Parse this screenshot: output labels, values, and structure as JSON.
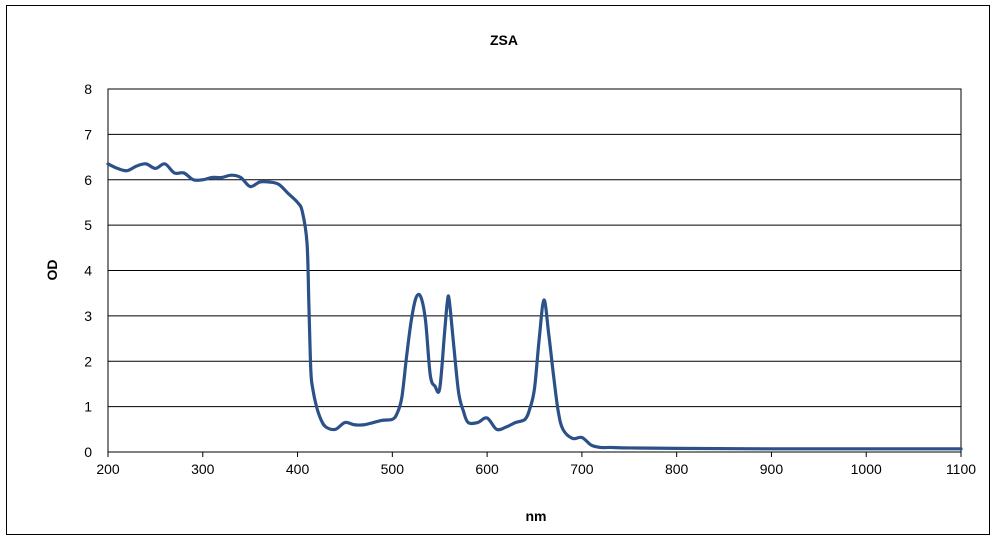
{
  "chart_data": {
    "type": "line",
    "title": "ZSA",
    "xlabel": "nm",
    "ylabel": "OD",
    "xlim": [
      200,
      1100
    ],
    "ylim": [
      0,
      8
    ],
    "xticks": [
      200,
      300,
      400,
      500,
      600,
      700,
      800,
      900,
      1000,
      1100
    ],
    "yticks": [
      0,
      1,
      2,
      3,
      4,
      5,
      6,
      7,
      8
    ],
    "grid": "horizontal",
    "colors": {
      "line": "#2b5188",
      "grid": "#000000"
    },
    "series": [
      {
        "x": [
          200,
          210,
          220,
          230,
          240,
          250,
          260,
          270,
          280,
          290,
          300,
          310,
          320,
          330,
          340,
          350,
          360,
          370,
          380,
          390,
          400,
          405,
          410,
          412,
          414,
          416,
          420,
          425,
          430,
          440,
          450,
          460,
          470,
          480,
          490,
          500,
          505,
          510,
          515,
          520,
          525,
          530,
          535,
          540,
          545,
          550,
          555,
          558,
          560,
          565,
          570,
          575,
          580,
          590,
          600,
          610,
          620,
          630,
          640,
          645,
          650,
          655,
          660,
          665,
          670,
          675,
          680,
          690,
          700,
          710,
          720,
          730,
          750,
          800,
          900,
          1000,
          1100
        ],
        "y": [
          6.35,
          6.25,
          6.2,
          6.3,
          6.35,
          6.25,
          6.35,
          6.15,
          6.15,
          6.0,
          6.0,
          6.05,
          6.05,
          6.1,
          6.05,
          5.85,
          5.95,
          5.95,
          5.9,
          5.7,
          5.5,
          5.3,
          4.6,
          3.2,
          1.8,
          1.4,
          1.0,
          0.7,
          0.55,
          0.5,
          0.65,
          0.6,
          0.6,
          0.65,
          0.7,
          0.72,
          0.85,
          1.2,
          2.1,
          2.9,
          3.4,
          3.42,
          2.9,
          1.7,
          1.45,
          1.4,
          2.6,
          3.3,
          3.35,
          2.3,
          1.3,
          0.9,
          0.65,
          0.65,
          0.75,
          0.5,
          0.55,
          0.65,
          0.72,
          0.95,
          1.4,
          2.5,
          3.35,
          2.6,
          1.7,
          0.9,
          0.5,
          0.3,
          0.32,
          0.15,
          0.1,
          0.1,
          0.09,
          0.08,
          0.07,
          0.07,
          0.07
        ]
      }
    ]
  }
}
